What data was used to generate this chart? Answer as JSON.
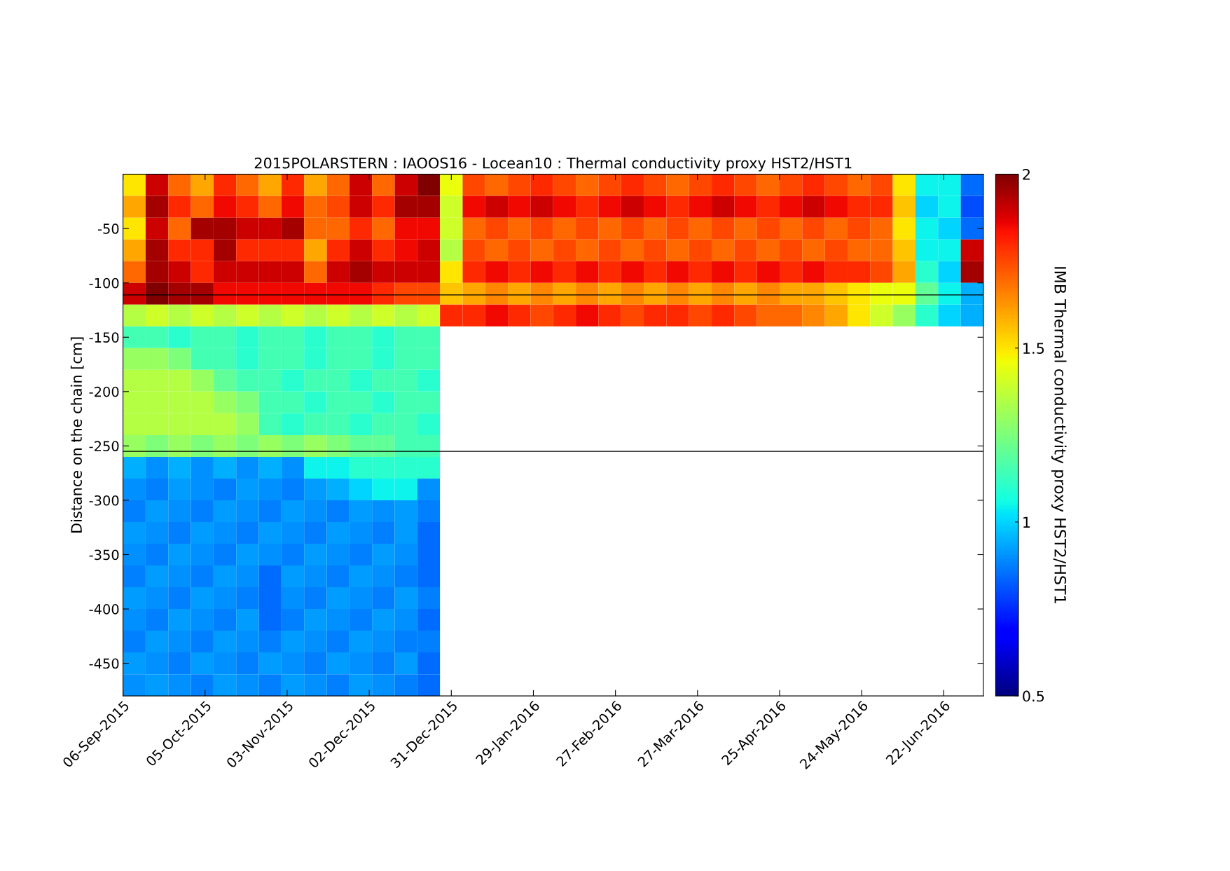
{
  "chart_data": {
    "type": "heatmap",
    "title": "2015POLARSTERN : IAOOS16 - Locean10 : Thermal conductivity proxy HST2/HST1",
    "ylabel": "Distance on the chain [cm]",
    "clabel": "IMB Thermal conductivity proxy HST2/HST1",
    "xlim": [
      "2015-09-06",
      "2016-07-06"
    ],
    "xticks": [
      {
        "value": "2015-09-06",
        "label": "06-Sep-2015"
      },
      {
        "value": "2015-10-05",
        "label": "05-Oct-2015"
      },
      {
        "value": "2015-11-03",
        "label": "03-Nov-2015"
      },
      {
        "value": "2015-12-02",
        "label": "02-Dec-2015"
      },
      {
        "value": "2015-12-31",
        "label": "31-Dec-2015"
      },
      {
        "value": "2016-01-29",
        "label": "29-Jan-2016"
      },
      {
        "value": "2016-02-27",
        "label": "27-Feb-2016"
      },
      {
        "value": "2016-03-27",
        "label": "27-Mar-2016"
      },
      {
        "value": "2016-04-25",
        "label": "25-Apr-2016"
      },
      {
        "value": "2016-05-24",
        "label": "24-May-2016"
      },
      {
        "value": "2016-06-22",
        "label": "22-Jun-2016"
      }
    ],
    "ylim": [
      -480,
      0
    ],
    "yticks": [
      -450,
      -400,
      -350,
      -300,
      -250,
      -200,
      -150,
      -100,
      -50
    ],
    "clim": [
      0.5,
      2
    ],
    "cticks": [
      0.5,
      1,
      1.5,
      2
    ],
    "ref_lines": [
      {
        "axis": "y",
        "value": -111,
        "color": "#000000"
      },
      {
        "axis": "y",
        "value": -255,
        "color": "#000000"
      }
    ],
    "x": [
      "2015-09-10",
      "2015-09-18",
      "2015-09-26",
      "2015-10-04",
      "2015-10-12",
      "2015-10-20",
      "2015-10-28",
      "2015-11-05",
      "2015-11-13",
      "2015-11-21",
      "2015-11-29",
      "2015-12-07",
      "2015-12-15",
      "2015-12-23",
      "2015-12-31",
      "2016-01-08",
      "2016-01-16",
      "2016-01-24",
      "2016-02-01",
      "2016-02-09",
      "2016-02-17",
      "2016-02-25",
      "2016-03-04",
      "2016-03-12",
      "2016-03-20",
      "2016-03-28",
      "2016-04-05",
      "2016-04-13",
      "2016-04-21",
      "2016-04-29",
      "2016-05-07",
      "2016-05-15",
      "2016-05-23",
      "2016-05-31",
      "2016-06-08",
      "2016-06-16",
      "2016-06-24",
      "2016-07-02"
    ],
    "y": [
      -10,
      -30,
      -50,
      -70,
      -90,
      -110,
      -130,
      -150,
      -170,
      -190,
      -210,
      -230,
      -250,
      -270,
      -290,
      -310,
      -330,
      -350,
      -370,
      -390,
      -410,
      -430,
      -450,
      -470
    ],
    "cells": [
      [
        1.5,
        1.9,
        1.7,
        1.6,
        1.8,
        1.7,
        1.6,
        1.8,
        1.6,
        1.7,
        1.9,
        1.7,
        1.9,
        2.0,
        1.45,
        1.75,
        1.7,
        1.75,
        1.8,
        1.75,
        1.7,
        1.75,
        1.8,
        1.75,
        1.7,
        1.75,
        1.8,
        1.75,
        1.7,
        1.75,
        1.8,
        1.75,
        1.7,
        1.75,
        1.5,
        1.05,
        1.05,
        0.85
      ],
      [
        1.6,
        1.95,
        1.8,
        1.7,
        1.85,
        1.8,
        1.7,
        1.85,
        1.7,
        1.75,
        1.9,
        1.8,
        1.95,
        1.95,
        1.4,
        1.85,
        1.9,
        1.85,
        1.9,
        1.85,
        1.8,
        1.85,
        1.9,
        1.85,
        1.8,
        1.85,
        1.9,
        1.85,
        1.8,
        1.85,
        1.9,
        1.85,
        1.8,
        1.8,
        1.55,
        1.0,
        1.05,
        0.8
      ],
      [
        1.5,
        1.9,
        1.7,
        1.95,
        1.95,
        1.9,
        1.9,
        1.95,
        1.7,
        1.7,
        1.8,
        1.7,
        1.85,
        1.85,
        1.4,
        1.7,
        1.75,
        1.7,
        1.75,
        1.7,
        1.75,
        1.7,
        1.75,
        1.7,
        1.75,
        1.7,
        1.75,
        1.7,
        1.75,
        1.7,
        1.75,
        1.7,
        1.75,
        1.7,
        1.5,
        1.05,
        1.0,
        0.85
      ],
      [
        1.6,
        1.95,
        1.8,
        1.8,
        1.95,
        1.8,
        1.8,
        1.8,
        1.6,
        1.8,
        1.9,
        1.8,
        1.85,
        1.9,
        1.35,
        1.75,
        1.7,
        1.75,
        1.7,
        1.75,
        1.7,
        1.75,
        1.7,
        1.75,
        1.7,
        1.75,
        1.7,
        1.75,
        1.7,
        1.75,
        1.7,
        1.75,
        1.7,
        1.7,
        1.55,
        1.05,
        1.05,
        1.9
      ],
      [
        1.7,
        1.95,
        1.9,
        1.8,
        1.9,
        1.9,
        1.9,
        1.9,
        1.7,
        1.9,
        1.95,
        1.9,
        1.9,
        1.9,
        1.5,
        1.8,
        1.85,
        1.8,
        1.85,
        1.8,
        1.85,
        1.8,
        1.85,
        1.8,
        1.85,
        1.8,
        1.85,
        1.8,
        1.85,
        1.8,
        1.85,
        1.8,
        1.8,
        1.75,
        1.6,
        1.1,
        1.0,
        1.95
      ],
      [
        1.9,
        2.0,
        1.95,
        1.95,
        1.85,
        1.85,
        1.85,
        1.85,
        1.85,
        1.85,
        1.85,
        1.8,
        1.75,
        1.75,
        1.55,
        1.6,
        1.65,
        1.6,
        1.65,
        1.6,
        1.65,
        1.6,
        1.65,
        1.6,
        1.65,
        1.6,
        1.65,
        1.6,
        1.65,
        1.6,
        1.6,
        1.55,
        1.5,
        1.45,
        1.45,
        1.2,
        1.05,
        0.95
      ],
      [
        1.35,
        1.4,
        1.35,
        1.4,
        1.35,
        1.4,
        1.35,
        1.4,
        1.35,
        1.4,
        1.35,
        1.4,
        1.35,
        1.4,
        1.8,
        1.8,
        1.85,
        1.8,
        1.75,
        1.8,
        1.85,
        1.8,
        1.75,
        1.8,
        1.8,
        1.75,
        1.8,
        1.75,
        1.7,
        1.7,
        1.65,
        1.6,
        1.5,
        1.4,
        1.3,
        1.1,
        1.0,
        0.95
      ],
      [
        1.15,
        1.15,
        1.1,
        1.15,
        1.15,
        1.1,
        1.15,
        1.15,
        1.1,
        1.15,
        1.15,
        1.1,
        1.15,
        1.15,
        null,
        null,
        null,
        null,
        null,
        null,
        null,
        null,
        null,
        null,
        null,
        null,
        null,
        null,
        null,
        null,
        null,
        null,
        null,
        null,
        null,
        null,
        null,
        null
      ],
      [
        1.3,
        1.3,
        1.25,
        1.15,
        1.15,
        1.1,
        1.15,
        1.15,
        1.1,
        1.15,
        1.15,
        1.1,
        1.15,
        1.15,
        null,
        null,
        null,
        null,
        null,
        null,
        null,
        null,
        null,
        null,
        null,
        null,
        null,
        null,
        null,
        null,
        null,
        null,
        null,
        null,
        null,
        null,
        null,
        null
      ],
      [
        1.35,
        1.35,
        1.35,
        1.3,
        1.2,
        1.15,
        1.15,
        1.1,
        1.15,
        1.15,
        1.1,
        1.15,
        1.15,
        1.1,
        null,
        null,
        null,
        null,
        null,
        null,
        null,
        null,
        null,
        null,
        null,
        null,
        null,
        null,
        null,
        null,
        null,
        null,
        null,
        null,
        null,
        null,
        null,
        null
      ],
      [
        1.35,
        1.35,
        1.35,
        1.35,
        1.3,
        1.25,
        1.15,
        1.15,
        1.1,
        1.15,
        1.15,
        1.1,
        1.15,
        1.15,
        null,
        null,
        null,
        null,
        null,
        null,
        null,
        null,
        null,
        null,
        null,
        null,
        null,
        null,
        null,
        null,
        null,
        null,
        null,
        null,
        null,
        null,
        null,
        null
      ],
      [
        1.35,
        1.35,
        1.35,
        1.35,
        1.35,
        1.3,
        1.15,
        1.1,
        1.15,
        1.15,
        1.1,
        1.15,
        1.15,
        1.1,
        null,
        null,
        null,
        null,
        null,
        null,
        null,
        null,
        null,
        null,
        null,
        null,
        null,
        null,
        null,
        null,
        null,
        null,
        null,
        null,
        null,
        null,
        null,
        null
      ],
      [
        1.3,
        1.25,
        1.3,
        1.25,
        1.3,
        1.25,
        1.3,
        1.25,
        1.3,
        1.25,
        1.2,
        1.2,
        1.15,
        1.15,
        null,
        null,
        null,
        null,
        null,
        null,
        null,
        null,
        null,
        null,
        null,
        null,
        null,
        null,
        null,
        null,
        null,
        null,
        null,
        null,
        null,
        null,
        null,
        null
      ],
      [
        0.95,
        0.9,
        0.95,
        0.9,
        0.95,
        0.9,
        0.95,
        0.9,
        1.05,
        1.05,
        1.1,
        1.1,
        1.1,
        1.1,
        null,
        null,
        null,
        null,
        null,
        null,
        null,
        null,
        null,
        null,
        null,
        null,
        null,
        null,
        null,
        null,
        null,
        null,
        null,
        null,
        null,
        null,
        null,
        null
      ],
      [
        0.9,
        0.88,
        0.92,
        0.9,
        0.88,
        0.92,
        0.9,
        0.88,
        0.92,
        0.95,
        1.0,
        1.05,
        1.05,
        0.9,
        null,
        null,
        null,
        null,
        null,
        null,
        null,
        null,
        null,
        null,
        null,
        null,
        null,
        null,
        null,
        null,
        null,
        null,
        null,
        null,
        null,
        null,
        null,
        null
      ],
      [
        0.88,
        0.92,
        0.9,
        0.88,
        0.92,
        0.9,
        0.88,
        0.92,
        0.9,
        0.88,
        0.92,
        0.9,
        0.92,
        0.88,
        null,
        null,
        null,
        null,
        null,
        null,
        null,
        null,
        null,
        null,
        null,
        null,
        null,
        null,
        null,
        null,
        null,
        null,
        null,
        null,
        null,
        null,
        null,
        null
      ],
      [
        0.92,
        0.9,
        0.88,
        0.92,
        0.9,
        0.88,
        0.92,
        0.9,
        0.88,
        0.92,
        0.9,
        0.88,
        0.92,
        0.85,
        null,
        null,
        null,
        null,
        null,
        null,
        null,
        null,
        null,
        null,
        null,
        null,
        null,
        null,
        null,
        null,
        null,
        null,
        null,
        null,
        null,
        null,
        null,
        null
      ],
      [
        0.9,
        0.88,
        0.92,
        0.9,
        0.88,
        0.92,
        0.9,
        0.88,
        0.92,
        0.9,
        0.88,
        0.92,
        0.9,
        0.85,
        null,
        null,
        null,
        null,
        null,
        null,
        null,
        null,
        null,
        null,
        null,
        null,
        null,
        null,
        null,
        null,
        null,
        null,
        null,
        null,
        null,
        null,
        null,
        null
      ],
      [
        0.88,
        0.92,
        0.9,
        0.88,
        0.92,
        0.9,
        0.85,
        0.92,
        0.9,
        0.88,
        0.92,
        0.9,
        0.88,
        0.85,
        null,
        null,
        null,
        null,
        null,
        null,
        null,
        null,
        null,
        null,
        null,
        null,
        null,
        null,
        null,
        null,
        null,
        null,
        null,
        null,
        null,
        null,
        null,
        null
      ],
      [
        0.92,
        0.9,
        0.88,
        0.92,
        0.9,
        0.88,
        0.85,
        0.9,
        0.88,
        0.92,
        0.9,
        0.88,
        0.92,
        0.88,
        null,
        null,
        null,
        null,
        null,
        null,
        null,
        null,
        null,
        null,
        null,
        null,
        null,
        null,
        null,
        null,
        null,
        null,
        null,
        null,
        null,
        null,
        null,
        null
      ],
      [
        0.9,
        0.88,
        0.92,
        0.9,
        0.88,
        0.92,
        0.85,
        0.88,
        0.92,
        0.9,
        0.88,
        0.92,
        0.9,
        0.85,
        null,
        null,
        null,
        null,
        null,
        null,
        null,
        null,
        null,
        null,
        null,
        null,
        null,
        null,
        null,
        null,
        null,
        null,
        null,
        null,
        null,
        null,
        null,
        null
      ],
      [
        0.88,
        0.92,
        0.9,
        0.88,
        0.92,
        0.9,
        0.88,
        0.92,
        0.9,
        0.88,
        0.92,
        0.9,
        0.88,
        0.88,
        null,
        null,
        null,
        null,
        null,
        null,
        null,
        null,
        null,
        null,
        null,
        null,
        null,
        null,
        null,
        null,
        null,
        null,
        null,
        null,
        null,
        null,
        null,
        null
      ],
      [
        0.92,
        0.9,
        0.88,
        0.92,
        0.9,
        0.88,
        0.92,
        0.9,
        0.88,
        0.92,
        0.9,
        0.88,
        0.92,
        0.85,
        null,
        null,
        null,
        null,
        null,
        null,
        null,
        null,
        null,
        null,
        null,
        null,
        null,
        null,
        null,
        null,
        null,
        null,
        null,
        null,
        null,
        null,
        null,
        null
      ],
      [
        0.9,
        0.92,
        0.9,
        0.88,
        0.92,
        0.9,
        0.88,
        0.92,
        0.9,
        0.88,
        0.92,
        0.9,
        0.88,
        0.85,
        null,
        null,
        null,
        null,
        null,
        null,
        null,
        null,
        null,
        null,
        null,
        null,
        null,
        null,
        null,
        null,
        null,
        null,
        null,
        null,
        null,
        null,
        null,
        null
      ]
    ]
  }
}
